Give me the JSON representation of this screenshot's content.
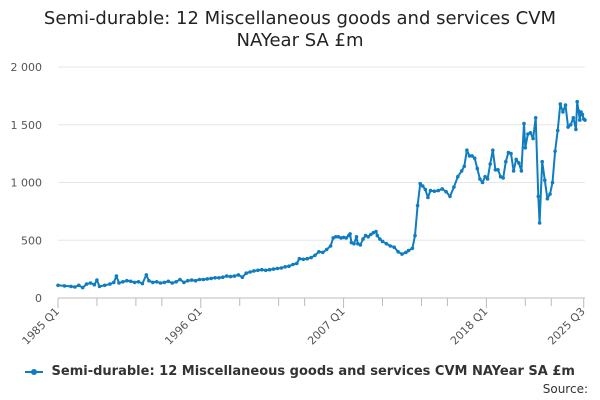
{
  "chart_data": {
    "type": "line",
    "title": "Semi-durable: 12 Miscellaneous goods and services CVM NAYear SA £m",
    "title_lines": [
      "Semi-durable: 12 Miscellaneous goods and services CVM",
      "NAYear SA £m"
    ],
    "xlabel": "",
    "ylabel": "",
    "ylim": [
      0,
      2000
    ],
    "y_ticks": [
      0,
      500,
      1000,
      1500,
      2000
    ],
    "y_tick_labels": [
      "0",
      "500",
      "1 000",
      "1 500",
      "2 000"
    ],
    "x_tick_labels": [
      "1985 Q1",
      "1996 Q1",
      "2007 Q1",
      "2018 Q1",
      "2025 Q3"
    ],
    "x_tick_years": [
      1985,
      1996,
      2007,
      2018,
      2025.5
    ],
    "x_minor_years": [
      1988,
      1991,
      1993,
      1999,
      2002,
      2004,
      2010,
      2013,
      2015,
      2021,
      2023
    ],
    "grid": true,
    "legend_position": "bottom",
    "series": [
      {
        "name": "Semi-durable: 12 Miscellaneous goods and services CVM NAYear SA £m",
        "color": "#0f7dbf",
        "points": [
          [
            1985.0,
            110
          ],
          [
            1985.5,
            105
          ],
          [
            1986.0,
            100
          ],
          [
            1986.3,
            95
          ],
          [
            1986.6,
            110
          ],
          [
            1986.9,
            90
          ],
          [
            1987.2,
            120
          ],
          [
            1987.5,
            130
          ],
          [
            1987.8,
            115
          ],
          [
            1988.0,
            155
          ],
          [
            1988.2,
            100
          ],
          [
            1988.6,
            110
          ],
          [
            1989.0,
            120
          ],
          [
            1989.3,
            135
          ],
          [
            1989.5,
            190
          ],
          [
            1989.7,
            130
          ],
          [
            1990.0,
            140
          ],
          [
            1990.3,
            150
          ],
          [
            1990.6,
            145
          ],
          [
            1990.9,
            135
          ],
          [
            1991.2,
            140
          ],
          [
            1991.5,
            125
          ],
          [
            1991.8,
            200
          ],
          [
            1992.0,
            150
          ],
          [
            1992.3,
            135
          ],
          [
            1992.6,
            140
          ],
          [
            1992.9,
            130
          ],
          [
            1993.2,
            135
          ],
          [
            1993.5,
            145
          ],
          [
            1993.8,
            130
          ],
          [
            1994.1,
            140
          ],
          [
            1994.4,
            160
          ],
          [
            1994.7,
            135
          ],
          [
            1995.0,
            150
          ],
          [
            1995.3,
            155
          ],
          [
            1995.6,
            150
          ],
          [
            1995.9,
            160
          ],
          [
            1996.2,
            160
          ],
          [
            1996.5,
            165
          ],
          [
            1996.8,
            170
          ],
          [
            1997.1,
            175
          ],
          [
            1997.4,
            175
          ],
          [
            1997.7,
            180
          ],
          [
            1998.0,
            190
          ],
          [
            1998.3,
            185
          ],
          [
            1998.6,
            190
          ],
          [
            1998.9,
            200
          ],
          [
            1999.2,
            180
          ],
          [
            1999.5,
            215
          ],
          [
            1999.8,
            225
          ],
          [
            2000.1,
            235
          ],
          [
            2000.4,
            240
          ],
          [
            2000.7,
            245
          ],
          [
            2001.0,
            240
          ],
          [
            2001.3,
            245
          ],
          [
            2001.6,
            250
          ],
          [
            2001.9,
            255
          ],
          [
            2002.2,
            260
          ],
          [
            2002.5,
            270
          ],
          [
            2002.8,
            275
          ],
          [
            2003.1,
            290
          ],
          [
            2003.4,
            300
          ],
          [
            2003.6,
            340
          ],
          [
            2003.9,
            335
          ],
          [
            2004.2,
            340
          ],
          [
            2004.5,
            350
          ],
          [
            2004.8,
            370
          ],
          [
            2005.1,
            400
          ],
          [
            2005.4,
            395
          ],
          [
            2005.7,
            420
          ],
          [
            2006.0,
            450
          ],
          [
            2006.2,
            520
          ],
          [
            2006.4,
            530
          ],
          [
            2006.6,
            530
          ],
          [
            2006.8,
            520
          ],
          [
            2007.0,
            525
          ],
          [
            2007.2,
            520
          ],
          [
            2007.4,
            540
          ],
          [
            2007.5,
            555
          ],
          [
            2007.6,
            480
          ],
          [
            2007.8,
            470
          ],
          [
            2008.0,
            530
          ],
          [
            2008.1,
            470
          ],
          [
            2008.3,
            460
          ],
          [
            2008.5,
            510
          ],
          [
            2008.7,
            540
          ],
          [
            2008.9,
            530
          ],
          [
            2009.1,
            550
          ],
          [
            2009.3,
            565
          ],
          [
            2009.5,
            575
          ],
          [
            2009.6,
            540
          ],
          [
            2009.8,
            510
          ],
          [
            2010.0,
            490
          ],
          [
            2010.3,
            470
          ],
          [
            2010.6,
            450
          ],
          [
            2010.9,
            440
          ],
          [
            2011.2,
            400
          ],
          [
            2011.5,
            380
          ],
          [
            2011.8,
            395
          ],
          [
            2012.0,
            410
          ],
          [
            2012.3,
            430
          ],
          [
            2012.5,
            540
          ],
          [
            2012.7,
            800
          ],
          [
            2012.9,
            990
          ],
          [
            2013.1,
            970
          ],
          [
            2013.3,
            940
          ],
          [
            2013.5,
            870
          ],
          [
            2013.7,
            930
          ],
          [
            2014.0,
            925
          ],
          [
            2014.3,
            930
          ],
          [
            2014.6,
            945
          ],
          [
            2014.9,
            920
          ],
          [
            2015.2,
            880
          ],
          [
            2015.5,
            960
          ],
          [
            2015.8,
            1050
          ],
          [
            2016.1,
            1100
          ],
          [
            2016.3,
            1140
          ],
          [
            2016.5,
            1280
          ],
          [
            2016.7,
            1230
          ],
          [
            2016.9,
            1230
          ],
          [
            2017.1,
            1210
          ],
          [
            2017.3,
            1120
          ],
          [
            2017.5,
            1030
          ],
          [
            2017.7,
            1000
          ],
          [
            2017.9,
            1050
          ],
          [
            2018.1,
            1030
          ],
          [
            2018.3,
            1160
          ],
          [
            2018.5,
            1280
          ],
          [
            2018.7,
            1110
          ],
          [
            2018.9,
            1110
          ],
          [
            2019.1,
            1050
          ],
          [
            2019.3,
            1040
          ],
          [
            2019.5,
            1180
          ],
          [
            2019.7,
            1260
          ],
          [
            2019.9,
            1250
          ],
          [
            2020.1,
            1100
          ],
          [
            2020.3,
            1200
          ],
          [
            2020.5,
            1170
          ],
          [
            2020.7,
            1100
          ],
          [
            2020.9,
            1510
          ],
          [
            2021.0,
            1300
          ],
          [
            2021.2,
            1420
          ],
          [
            2021.4,
            1430
          ],
          [
            2021.6,
            1380
          ],
          [
            2021.8,
            1560
          ],
          [
            2022.0,
            880
          ],
          [
            2022.1,
            650
          ],
          [
            2022.3,
            1180
          ],
          [
            2022.5,
            1020
          ],
          [
            2022.7,
            860
          ],
          [
            2022.9,
            900
          ],
          [
            2023.1,
            1000
          ],
          [
            2023.3,
            1270
          ],
          [
            2023.5,
            1450
          ],
          [
            2023.7,
            1680
          ],
          [
            2023.9,
            1610
          ],
          [
            2024.1,
            1670
          ],
          [
            2024.3,
            1480
          ],
          [
            2024.5,
            1500
          ],
          [
            2024.7,
            1560
          ],
          [
            2024.9,
            1460
          ],
          [
            2025.0,
            1700
          ],
          [
            2025.1,
            1620
          ],
          [
            2025.2,
            1540
          ],
          [
            2025.3,
            1610
          ],
          [
            2025.4,
            1590
          ],
          [
            2025.5,
            1550
          ],
          [
            2025.6,
            1540
          ]
        ]
      }
    ],
    "legend_label": "Semi-durable: 12 Miscellaneous goods and services CVM NAYear SA £m",
    "source_label": "Source:"
  }
}
